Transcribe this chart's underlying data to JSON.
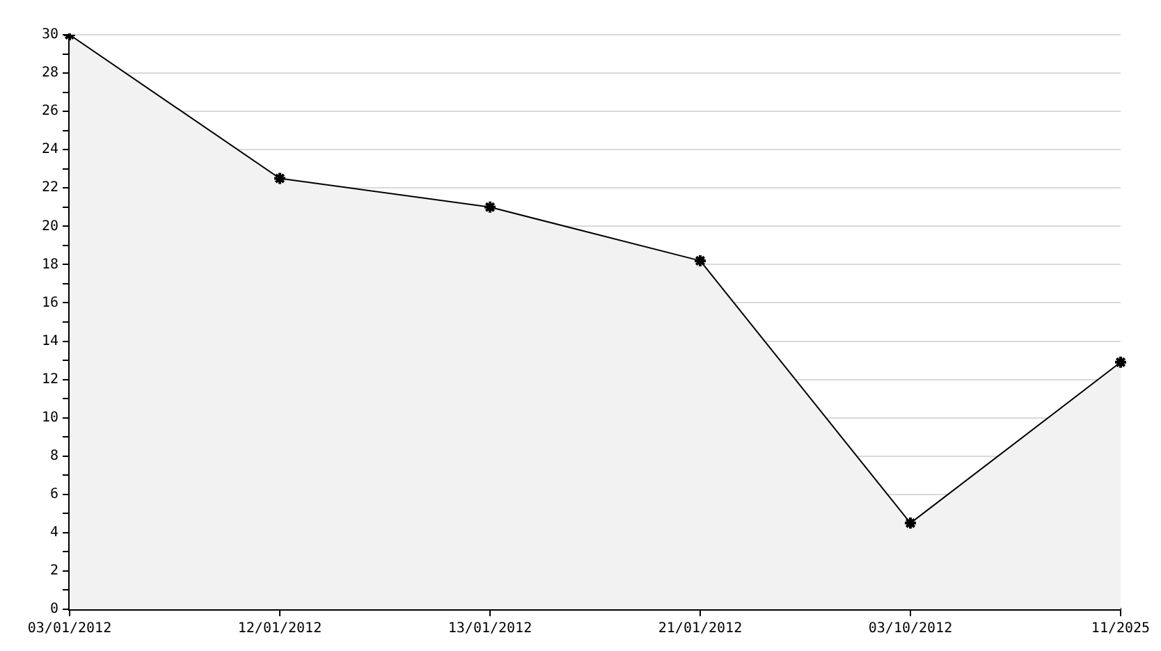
{
  "chart_data": {
    "type": "area",
    "categories": [
      "03/01/2012",
      "12/01/2012",
      "13/01/2012",
      "21/01/2012",
      "03/10/2012",
      "11/2025"
    ],
    "series": [
      {
        "color": "#000000",
        "values": [
          30,
          22.5,
          21,
          18.2,
          4.5,
          12.9
        ]
      }
    ],
    "ylim": [
      0,
      30
    ],
    "yticks": [
      0,
      {
        "value": 1,
        "label": null
      },
      2,
      {
        "value": 3,
        "label": null
      },
      4,
      {
        "value": 5,
        "label": null
      },
      6,
      {
        "value": 7,
        "label": null
      },
      8,
      {
        "value": 9,
        "label": null
      },
      10,
      {
        "value": 11,
        "label": null
      },
      12,
      {
        "value": 13,
        "label": null
      },
      14,
      {
        "value": 15,
        "label": null
      },
      16,
      {
        "value": 17,
        "label": null
      },
      18,
      {
        "value": 19,
        "label": null
      },
      20,
      {
        "value": 21,
        "label": null
      },
      22,
      {
        "value": 23,
        "label": null
      },
      24,
      {
        "value": 25,
        "label": null
      },
      26,
      {
        "value": 27,
        "label": null
      },
      28,
      {
        "value": 29,
        "label": null
      },
      30
    ],
    "grid": "y",
    "legend": false,
    "marker": "cross",
    "line_style": "solid"
  }
}
